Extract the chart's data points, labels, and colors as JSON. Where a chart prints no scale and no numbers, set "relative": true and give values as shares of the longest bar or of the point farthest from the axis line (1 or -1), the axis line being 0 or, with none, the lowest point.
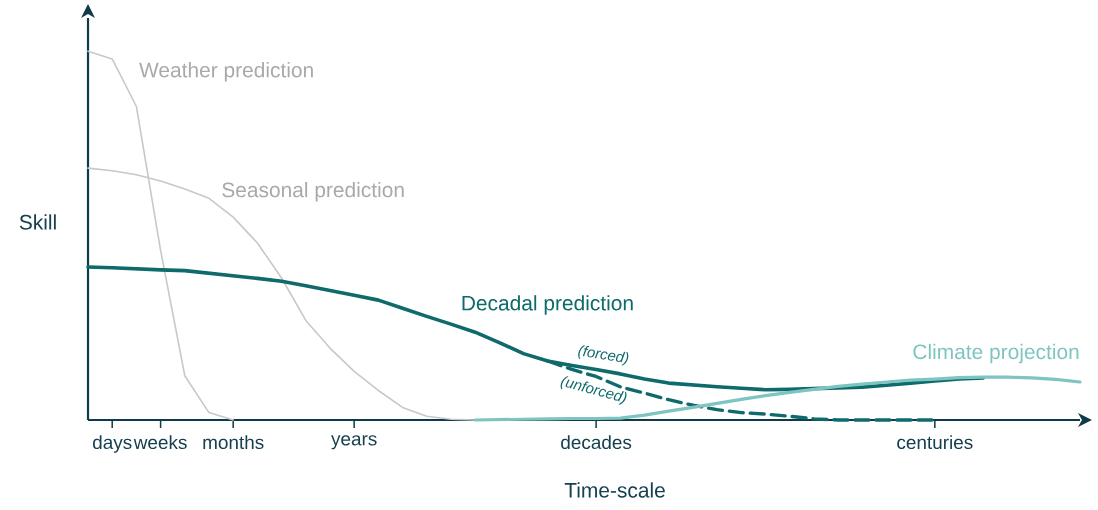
{
  "chart_data": {
    "type": "line",
    "relative": true,
    "xlabel": "Time-scale",
    "ylabel": "Skill",
    "categories": [
      null,
      "days",
      null,
      "weeks",
      null,
      null,
      "months",
      null,
      null,
      null,
      null,
      "years",
      null,
      null,
      null,
      null,
      null,
      null,
      null,
      null,
      null,
      "decades",
      null,
      null,
      null,
      null,
      null,
      null,
      null,
      null,
      null,
      null,
      null,
      null,
      null,
      "centuries",
      null,
      null,
      null,
      null,
      null,
      null
    ],
    "series": [
      {
        "name": "Weather prediction",
        "color": "#c8c8c8",
        "values": [
          1,
          0.979,
          0.85,
          0.46,
          0.12,
          0.02,
          0,
          null,
          null,
          null,
          null,
          null,
          null,
          null,
          null,
          null,
          null,
          null,
          null,
          null,
          null,
          null,
          null,
          null,
          null,
          null,
          null,
          null,
          null,
          null,
          null,
          null,
          null,
          null,
          null,
          null,
          null,
          null,
          null,
          null,
          null,
          null
        ]
      },
      {
        "name": "Seasonal prediction",
        "color": "#c8c8c8",
        "values": [
          0.683,
          0.676,
          0.665,
          0.648,
          0.626,
          0.601,
          0.55,
          0.48,
          0.385,
          0.27,
          0.195,
          0.132,
          0.08,
          0.034,
          0.01,
          0.002,
          0,
          null,
          null,
          null,
          null,
          null,
          null,
          null,
          null,
          null,
          null,
          null,
          null,
          null,
          null,
          null,
          null,
          null,
          null,
          null,
          null,
          null,
          null,
          null,
          null,
          null
        ]
      },
      {
        "name": "Decadal prediction",
        "color": "#0e6a6b",
        "values": [
          0.415,
          0.413,
          0.41,
          0.407,
          0.405,
          0.398,
          0.391,
          0.384,
          0.376,
          0.364,
          0.351,
          0.338,
          0.325,
          0.303,
          0.281,
          0.26,
          0.238,
          0.21,
          0.18,
          0.16,
          0.148,
          0.137,
          0.125,
          0.111,
          0.1,
          0.095,
          0.09,
          0.086,
          0.082,
          0.083,
          0.085,
          0.087,
          0.089,
          0.094,
          0.1,
          0.106,
          0.111,
          0.114,
          null,
          null,
          null,
          null
        ]
      },
      {
        "color": "#0e6a6b",
        "line_style": "dashed",
        "values": [
          null,
          null,
          null,
          null,
          null,
          null,
          null,
          null,
          null,
          null,
          null,
          null,
          null,
          null,
          null,
          null,
          null,
          null,
          null,
          0.16,
          0.137,
          0.118,
          0.09,
          0.073,
          0.055,
          0.04,
          0.028,
          0.02,
          0.016,
          0.01,
          0.003,
          0,
          0,
          0,
          0,
          0,
          null,
          null,
          null,
          null,
          null,
          null
        ]
      },
      {
        "name": "Climate projection",
        "color": "#7ec4c0",
        "values": [
          null,
          null,
          null,
          null,
          null,
          null,
          null,
          null,
          null,
          null,
          null,
          null,
          null,
          null,
          null,
          null,
          0,
          0.001,
          0.002,
          0.003,
          0.004,
          0.004,
          0.005,
          0.013,
          0.024,
          0.034,
          0.045,
          0.056,
          0.066,
          0.075,
          0.083,
          0.091,
          0.097,
          0.103,
          0.108,
          0.111,
          0.115,
          0.116,
          0.116,
          0.114,
          0.11,
          0.103
        ]
      }
    ],
    "annotations": [
      "(forced)",
      "(unforced)"
    ]
  }
}
